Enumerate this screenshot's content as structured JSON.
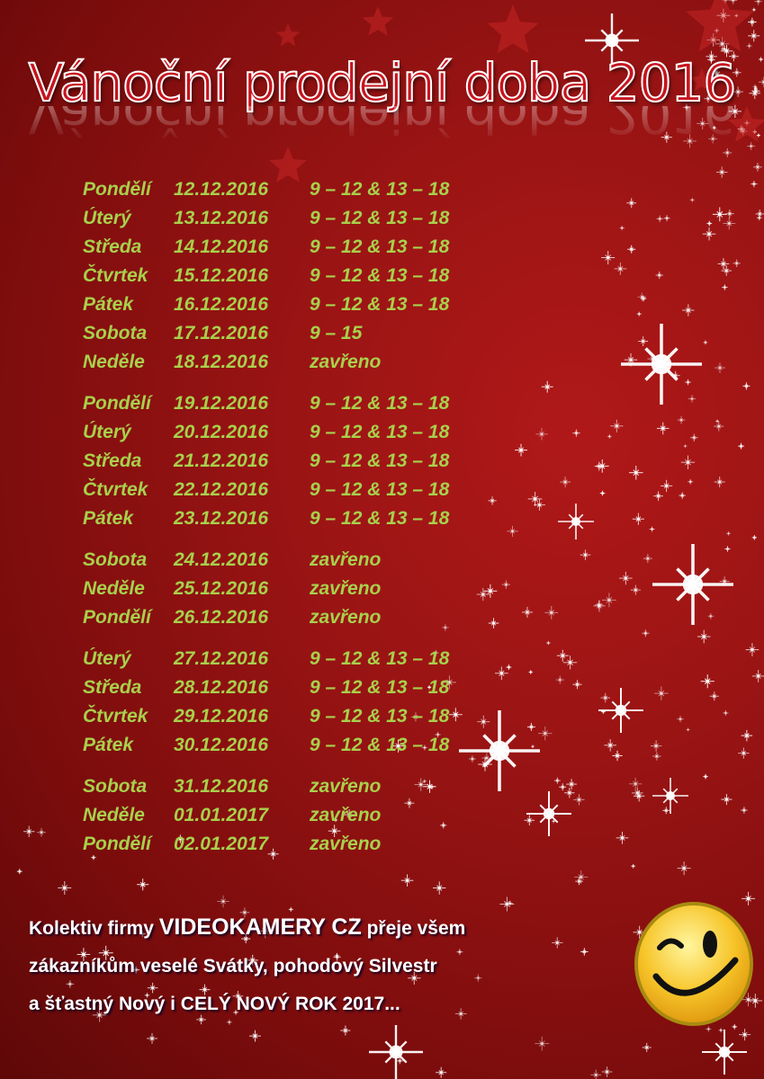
{
  "title": "Vánoční prodejní doba 2016",
  "schedule": [
    [
      {
        "day": "Pondělí",
        "date": "12.12.2016",
        "hours": "9 – 12 & 13 – 18"
      },
      {
        "day": "Úterý",
        "date": "13.12.2016",
        "hours": "9 – 12 & 13 – 18"
      },
      {
        "day": "Středa",
        "date": "14.12.2016",
        "hours": "9 – 12 & 13 – 18"
      },
      {
        "day": "Čtvrtek",
        "date": "15.12.2016",
        "hours": "9 – 12 & 13 – 18"
      },
      {
        "day": "Pátek",
        "date": "16.12.2016",
        "hours": "9 – 12 & 13 – 18"
      },
      {
        "day": "Sobota",
        "date": "17.12.2016",
        "hours": "9 – 15"
      },
      {
        "day": "Neděle",
        "date": "18.12.2016",
        "hours": "zavřeno"
      }
    ],
    [
      {
        "day": "Pondělí",
        "date": "19.12.2016",
        "hours": "9 – 12 & 13 – 18"
      },
      {
        "day": "Úterý",
        "date": "20.12.2016",
        "hours": "9 – 12 & 13 – 18"
      },
      {
        "day": "Středa",
        "date": "21.12.2016",
        "hours": "9 – 12 & 13 – 18"
      },
      {
        "day": "Čtvrtek",
        "date": "22.12.2016",
        "hours": "9 – 12 & 13 – 18"
      },
      {
        "day": "Pátek",
        "date": "23.12.2016",
        "hours": "9 – 12 & 13 – 18"
      }
    ],
    [
      {
        "day": "Sobota",
        "date": "24.12.2016",
        "hours": "zavřeno"
      },
      {
        "day": "Neděle",
        "date": "25.12.2016",
        "hours": "zavřeno"
      },
      {
        "day": "Pondělí",
        "date": "26.12.2016",
        "hours": "zavřeno"
      }
    ],
    [
      {
        "day": "Úterý",
        "date": "27.12.2016",
        "hours": "9 – 12 & 13 – 18"
      },
      {
        "day": "Středa",
        "date": "28.12.2016",
        "hours": "9 – 12 & 13 – 18"
      },
      {
        "day": "Čtvrtek",
        "date": "29.12.2016",
        "hours": "9 – 12 & 13 – 18"
      },
      {
        "day": "Pátek",
        "date": "30.12.2016",
        "hours": "9 – 12 & 13 – 18"
      }
    ],
    [
      {
        "day": "Sobota",
        "date": "31.12.2016",
        "hours": "zavřeno"
      },
      {
        "day": "Neděle",
        "date": "01.01.2017",
        "hours": "zavřeno"
      },
      {
        "day": "Pondělí",
        "date": "02.01.2017",
        "hours": "zavřeno"
      }
    ]
  ],
  "message": {
    "line1_a": "Kolektiv firmy ",
    "line1_b": "VIDEOKAMERY CZ",
    "line1_c": " přeje všem",
    "line2": "zákazníkům veselé Svátky, pohodový Silvestr",
    "line3": "a šťastný Nový i CELÝ NOVÝ ROK 2017..."
  },
  "colors": {
    "background": "#9a1414",
    "schedule_text": "#a8d04c",
    "title": "#c8141e",
    "message": "#ffffff"
  },
  "icons": {
    "smiley": "winking-smiley-icon",
    "stars": "sparkle-star-icon"
  }
}
